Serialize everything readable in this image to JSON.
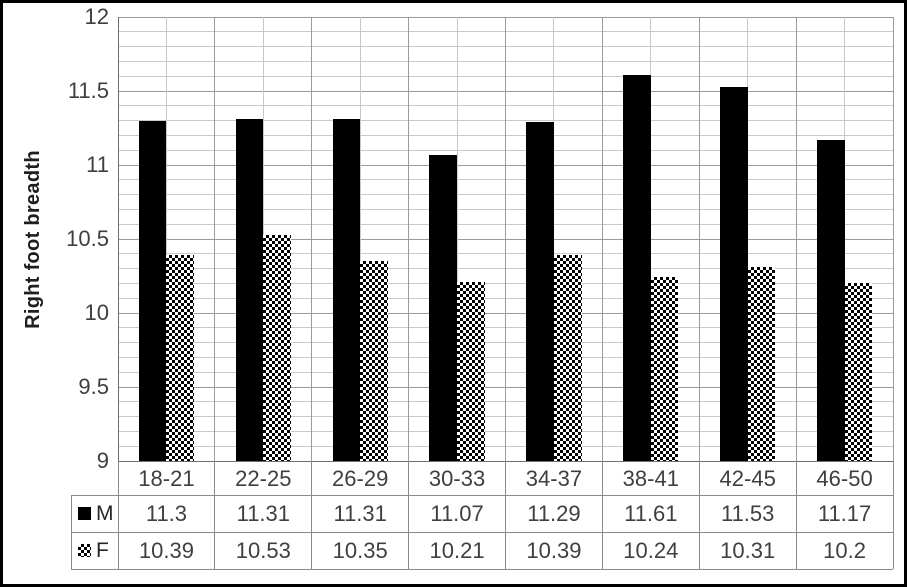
{
  "chart_data": {
    "type": "bar",
    "title": "",
    "ylabel": "Right foot breadth",
    "xlabel": "",
    "categories": [
      "18-21",
      "22-25",
      "26-29",
      "30-33",
      "34-37",
      "38-41",
      "42-45",
      "46-50"
    ],
    "series": [
      {
        "name": "M",
        "swatch": "solid",
        "values": [
          11.3,
          11.31,
          11.31,
          11.07,
          11.29,
          11.61,
          11.53,
          11.17
        ]
      },
      {
        "name": "F",
        "swatch": "checker",
        "values": [
          10.39,
          10.53,
          10.35,
          10.21,
          10.39,
          10.24,
          10.31,
          10.2
        ]
      }
    ],
    "ylim": [
      9,
      12
    ],
    "y_major_step": 0.5,
    "y_minor_step": 0.1,
    "y_tick_labels": [
      "12",
      "11.5",
      "11",
      "10.5",
      "10",
      "9.5",
      "9"
    ],
    "grid": "horizontal major+minor, vertical major+minor",
    "legend_position": "table-left",
    "colors": {
      "bar_m": "#000000",
      "pattern_fg": "#000000",
      "pattern_bg": "#ffffff",
      "grid_major": "#9b9b9b",
      "grid_minor": "#c9c9c9",
      "axis": "#6e6e6e",
      "table_line": "#8a8a8a",
      "text": "#3f3f3f",
      "figure_border": "#000000"
    }
  }
}
